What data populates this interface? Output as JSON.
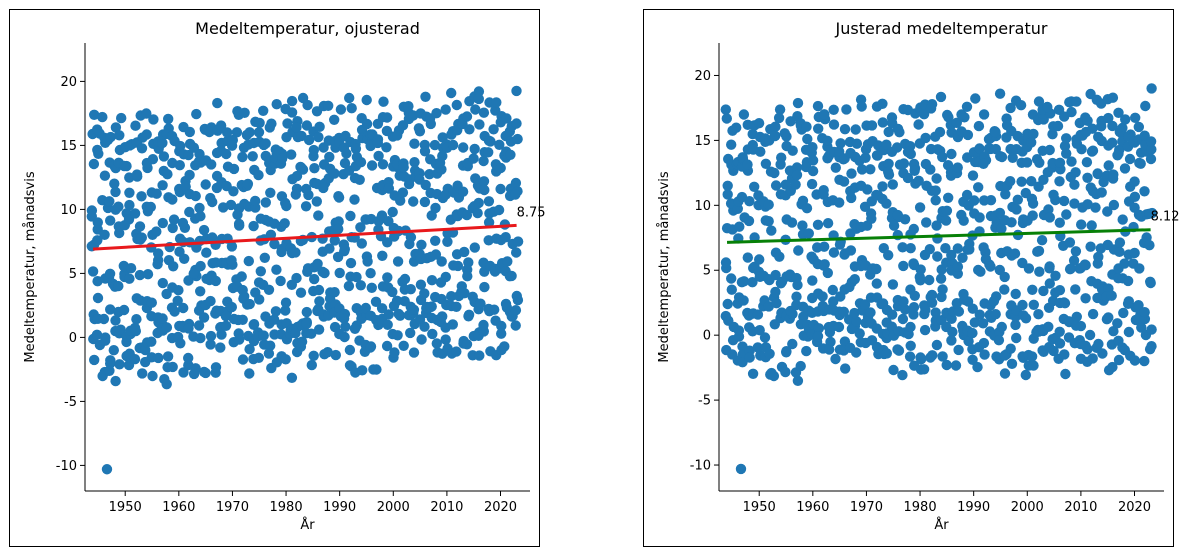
{
  "chart_data": [
    {
      "type": "scatter",
      "title": "Medeltemperatur, ojusterad",
      "xlabel": "År",
      "ylabel": "Medeltemperatur, månadsvis",
      "xlim": [
        1942.5,
        2025.5
      ],
      "ylim": [
        -12,
        23
      ],
      "xticks": [
        1950,
        1960,
        1970,
        1980,
        1990,
        2000,
        2010,
        2020
      ],
      "yticks": [
        -10,
        -5,
        0,
        5,
        10,
        15,
        20
      ],
      "point_color": "#1f77b4",
      "trend": {
        "x": [
          1944,
          2023
        ],
        "y": [
          6.9,
          8.75
        ],
        "color": "#e8191c",
        "label": "8.75"
      },
      "grid": false,
      "seed": 1
    },
    {
      "type": "scatter",
      "title": "Justerad medeltemperatur",
      "xlabel": "År",
      "ylabel": "Medeltemperatur, månadsvis",
      "xlim": [
        1942.5,
        2025.5
      ],
      "ylim": [
        -12,
        22.5
      ],
      "xticks": [
        1950,
        1960,
        1970,
        1980,
        1990,
        2000,
        2010,
        2020
      ],
      "yticks": [
        -10,
        -5,
        0,
        5,
        10,
        15,
        20
      ],
      "point_color": "#1f77b4",
      "trend": {
        "x": [
          1944,
          2023
        ],
        "y": [
          7.15,
          8.12
        ],
        "color": "#078007",
        "label": "8.12"
      },
      "grid": false,
      "seed": 2
    }
  ]
}
